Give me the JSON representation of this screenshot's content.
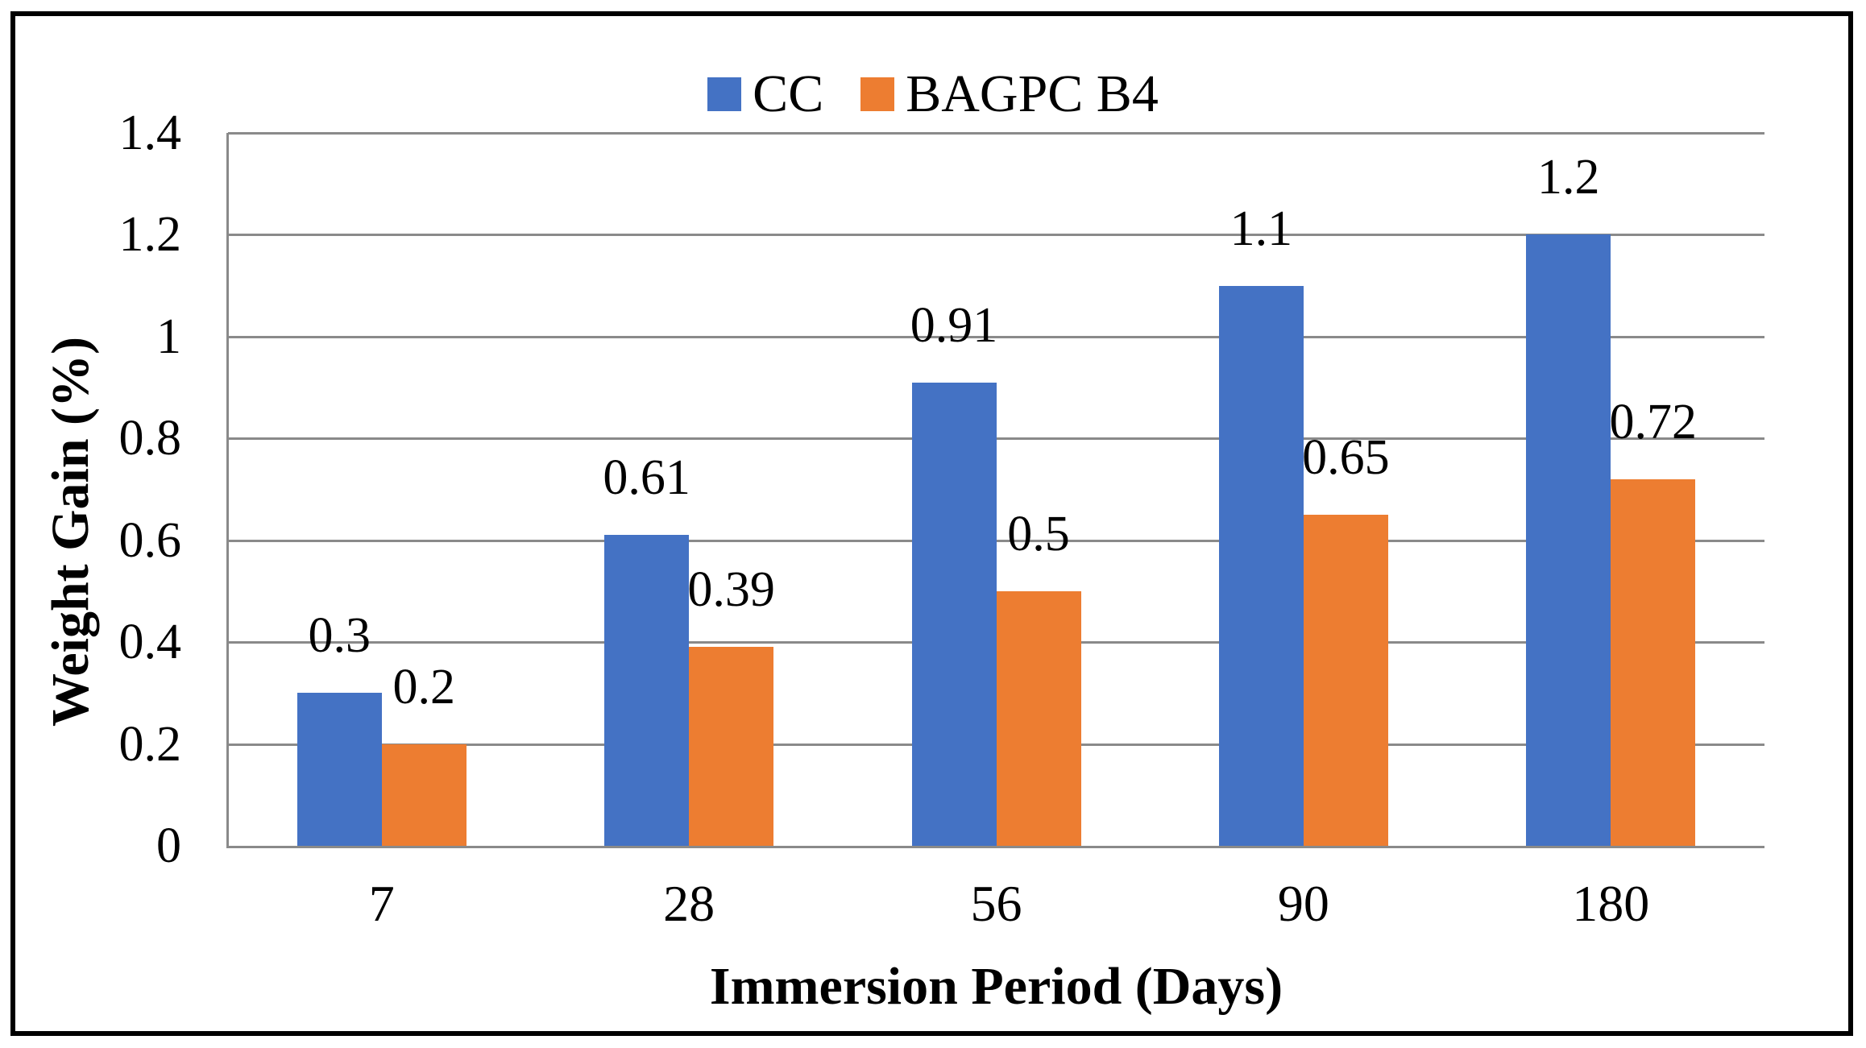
{
  "figure": {
    "background": "#ffffff",
    "border_color": "#000000"
  },
  "chart_data": {
    "type": "bar",
    "title": "",
    "categories": [
      "7",
      "28",
      "56",
      "90",
      "180"
    ],
    "series": [
      {
        "name": "CC",
        "color": "#4472C4",
        "values": [
          0.3,
          0.61,
          0.91,
          1.1,
          1.2
        ],
        "labels": [
          "0.3",
          "0.61",
          "0.91",
          "1.1",
          "1.2"
        ]
      },
      {
        "name": "BAGPC B4",
        "color": "#ED7D31",
        "values": [
          0.2,
          0.39,
          0.5,
          0.65,
          0.72
        ],
        "labels": [
          "0.2",
          "0.39",
          "0.5",
          "0.65",
          "0.72"
        ]
      }
    ],
    "xlabel": "Immersion Period (Days)",
    "ylabel": "Weight Gain (%)",
    "ylim": [
      0,
      1.4
    ],
    "ytick_step": 0.2,
    "yticks": [
      "1.4",
      "1.2",
      "1",
      "0.8",
      "0.6",
      "0.4",
      "0.2",
      "0"
    ],
    "grid": true,
    "gridline_color": "#8a8a8a",
    "axis_line_color": "#8a8a8a",
    "legend_position": "top-center",
    "data_labels_shown": true
  }
}
